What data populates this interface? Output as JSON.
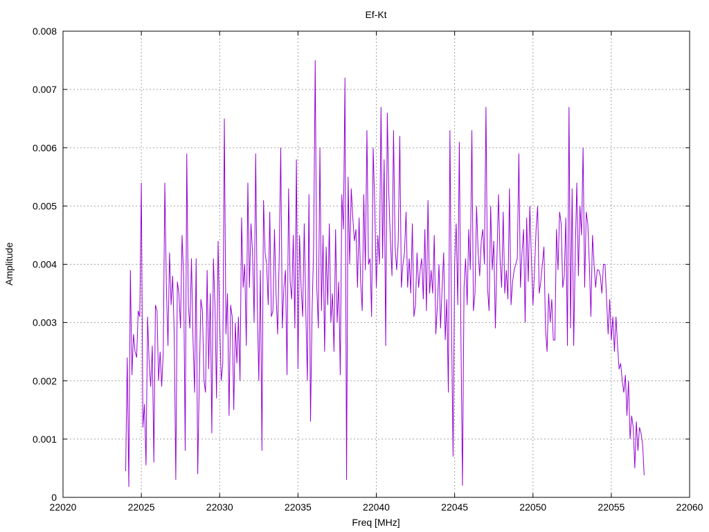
{
  "chart_data": {
    "type": "line",
    "title": "Ef-Kt",
    "xlabel": "Freq [MHz]",
    "ylabel": "Amplitude",
    "xlim": [
      22020,
      22060
    ],
    "ylim": [
      0,
      0.008
    ],
    "xticks": [
      "22020",
      "22025",
      "22030",
      "22035",
      "22040",
      "22045",
      "22050",
      "22055",
      "22060"
    ],
    "yticks": [
      "0",
      "0.001",
      "0.002",
      "0.003",
      "0.004",
      "0.005",
      "0.006",
      "0.007",
      "0.008"
    ],
    "grid": true,
    "legend": "none",
    "series": [
      {
        "color": "#9400d3",
        "x_start": 22024.0,
        "x_step": 0.1,
        "y": [
          0.00045,
          0.0024,
          0.00018,
          0.0039,
          0.0021,
          0.0028,
          0.0025,
          0.0024,
          0.0032,
          0.0031,
          0.0054,
          0.0012,
          0.0016,
          0.00055,
          0.0031,
          0.0023,
          0.0019,
          0.0026,
          0.0006,
          0.0033,
          0.0032,
          0.002,
          0.0025,
          0.0019,
          0.0025,
          0.0054,
          0.0036,
          0.0026,
          0.0042,
          0.0033,
          0.0038,
          0.0028,
          0.0003,
          0.0037,
          0.0035,
          0.0029,
          0.0045,
          0.0038,
          0.0008,
          0.0059,
          0.0033,
          0.0029,
          0.0041,
          0.0027,
          0.0018,
          0.0041,
          0.0004,
          0.002,
          0.0034,
          0.0032,
          0.002,
          0.0018,
          0.0039,
          0.0022,
          0.0035,
          0.0011,
          0.0041,
          0.0033,
          0.0017,
          0.0044,
          0.003,
          0.002,
          0.0023,
          0.0065,
          0.0028,
          0.0035,
          0.0014,
          0.0033,
          0.0031,
          0.0015,
          0.003,
          0.0023,
          0.0031,
          0.002,
          0.0048,
          0.0036,
          0.004,
          0.0026,
          0.0054,
          0.0036,
          0.0047,
          0.0042,
          0.003,
          0.0059,
          0.0033,
          0.002,
          0.0039,
          0.0008,
          0.0051,
          0.0042,
          0.004,
          0.0033,
          0.0049,
          0.0031,
          0.0032,
          0.0046,
          0.0035,
          0.0028,
          0.0041,
          0.006,
          0.0029,
          0.0036,
          0.0039,
          0.0021,
          0.0053,
          0.0037,
          0.0034,
          0.0045,
          0.0029,
          0.0058,
          0.0022,
          0.0045,
          0.0036,
          0.0031,
          0.0047,
          0.0032,
          0.002,
          0.0052,
          0.0013,
          0.0032,
          0.0043,
          0.0075,
          0.0036,
          0.0029,
          0.006,
          0.0032,
          0.0045,
          0.0025,
          0.0043,
          0.0033,
          0.0047,
          0.003,
          0.0035,
          0.0025,
          0.0046,
          0.003,
          0.0037,
          0.0021,
          0.0052,
          0.0046,
          0.0072,
          0.0003,
          0.0055,
          0.004,
          0.0053,
          0.0048,
          0.0044,
          0.0046,
          0.0036,
          0.0048,
          0.0037,
          0.0032,
          0.0052,
          0.0039,
          0.0063,
          0.004,
          0.0041,
          0.0031,
          0.006,
          0.005,
          0.0036,
          0.0045,
          0.004,
          0.0067,
          0.0041,
          0.0058,
          0.0026,
          0.0066,
          0.0052,
          0.0044,
          0.0038,
          0.0063,
          0.0043,
          0.0039,
          0.0044,
          0.0062,
          0.0036,
          0.004,
          0.0042,
          0.0049,
          0.0036,
          0.0041,
          0.0035,
          0.0047,
          0.0031,
          0.0033,
          0.0042,
          0.0036,
          0.0039,
          0.0041,
          0.0034,
          0.0046,
          0.0032,
          0.0051,
          0.0035,
          0.0039,
          0.0035,
          0.0045,
          0.0028,
          0.0033,
          0.004,
          0.0029,
          0.0036,
          0.0042,
          0.0027,
          0.0034,
          0.0018,
          0.0063,
          0.003,
          0.0007,
          0.004,
          0.0047,
          0.0033,
          0.0061,
          0.0028,
          0.0002,
          0.0036,
          0.0041,
          0.0033,
          0.0046,
          0.0039,
          0.0063,
          0.0032,
          0.0035,
          0.005,
          0.0042,
          0.0038,
          0.0044,
          0.0046,
          0.004,
          0.0067,
          0.0036,
          0.0032,
          0.005,
          0.0039,
          0.0044,
          0.0029,
          0.0041,
          0.0052,
          0.0041,
          0.0036,
          0.0049,
          0.0035,
          0.0039,
          0.0034,
          0.0053,
          0.0033,
          0.0037,
          0.0039,
          0.004,
          0.0041,
          0.0059,
          0.0036,
          0.0042,
          0.0046,
          0.003,
          0.0048,
          0.0037,
          0.005,
          0.0041,
          0.0033,
          0.0039,
          0.0046,
          0.005,
          0.0035,
          0.0037,
          0.004,
          0.0043,
          0.0029,
          0.0025,
          0.0035,
          0.003,
          0.0034,
          0.0027,
          0.0027,
          0.0046,
          0.0039,
          0.0049,
          0.0047,
          0.0036,
          0.0038,
          0.0048,
          0.0026,
          0.0067,
          0.0029,
          0.0053,
          0.0026,
          0.0042,
          0.0054,
          0.0038,
          0.005,
          0.0045,
          0.006,
          0.0036,
          0.0049,
          0.0047,
          0.004,
          0.0031,
          0.0045,
          0.004,
          0.0036,
          0.0039,
          0.0039,
          0.0038,
          0.0035,
          0.004,
          0.004,
          0.0034,
          0.0028,
          0.0034,
          0.0027,
          0.0031,
          0.0025,
          0.0031,
          0.0026,
          0.0022,
          0.0023,
          0.002,
          0.0018,
          0.0021,
          0.0014,
          0.002,
          0.001,
          0.0014,
          0.0012,
          0.0005,
          0.0013,
          0.0008,
          0.0012,
          0.0011,
          0.0009,
          0.00038
        ]
      }
    ]
  }
}
